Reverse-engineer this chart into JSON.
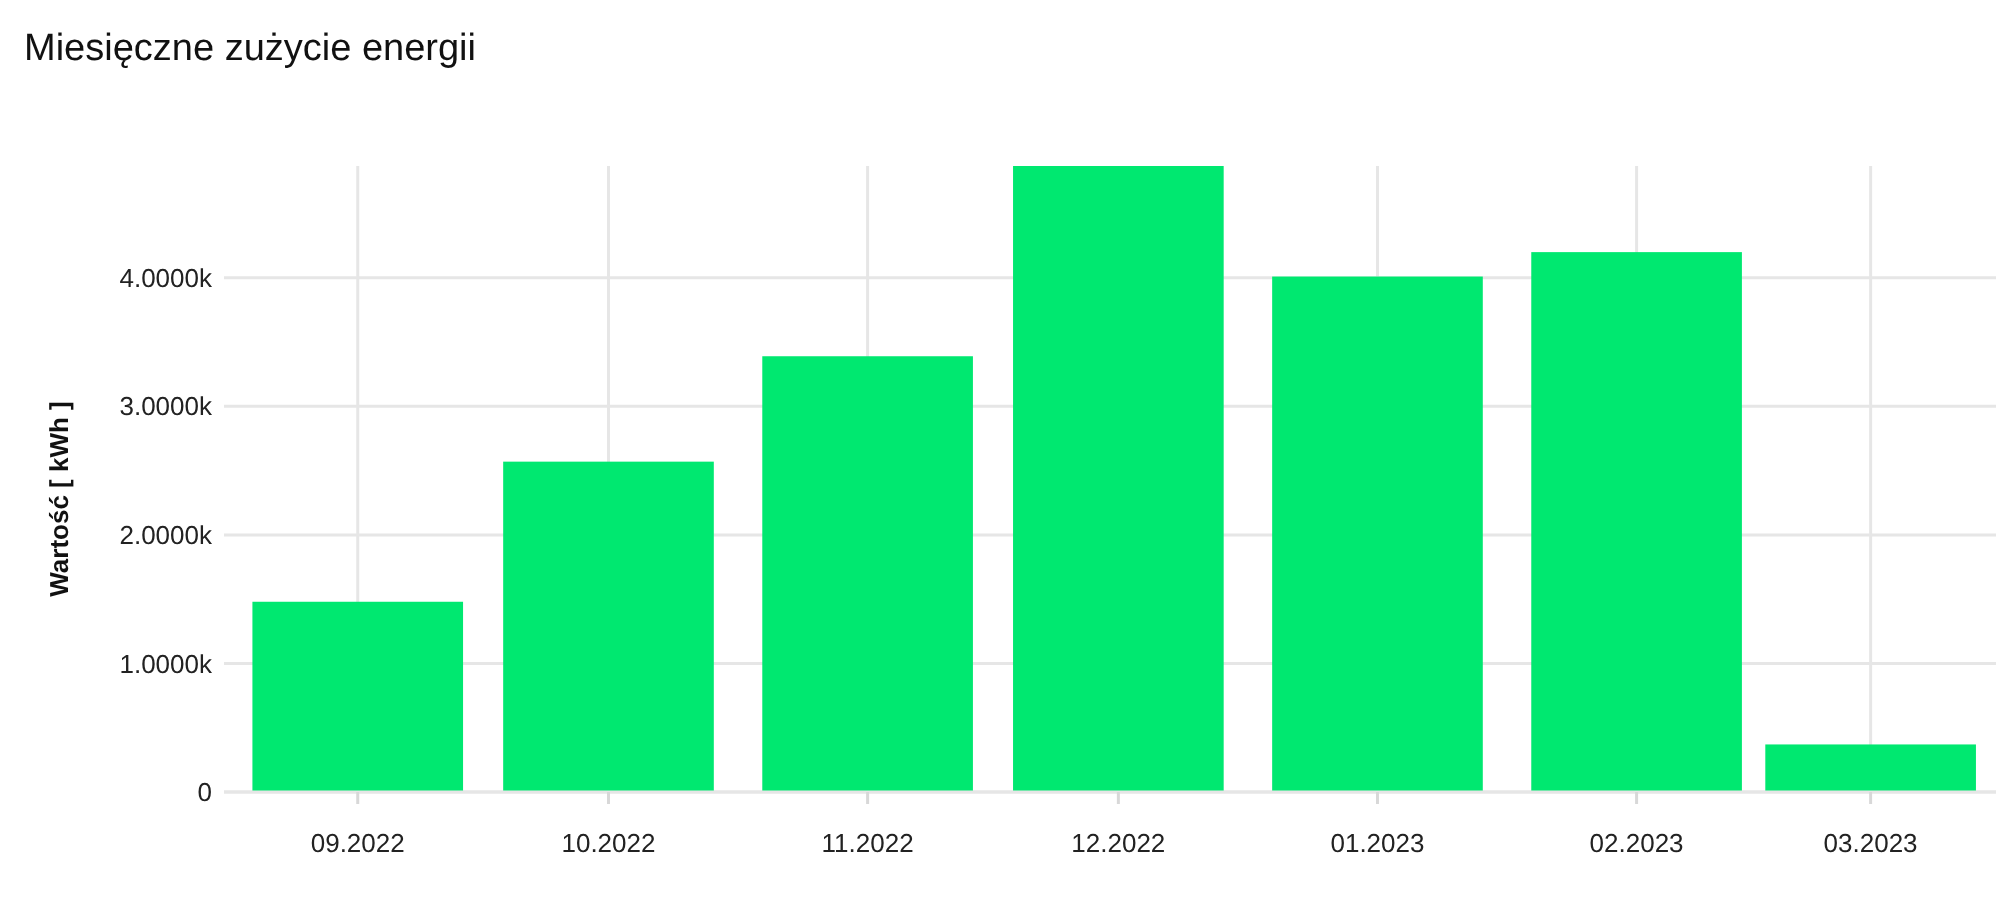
{
  "chart_data": {
    "type": "bar",
    "title": "Miesięczne zużycie energii",
    "ylabel": "Wartość [ kWh ]",
    "x": [
      "2022-09",
      "2022-10",
      "2022-11",
      "2022-12",
      "2023-01",
      "2023-02",
      "2023-03"
    ],
    "values": [
      1480,
      2570,
      3390,
      4870,
      4010,
      4200,
      370
    ],
    "color": "#00e870",
    "xlim": [
      "2022-08-16",
      "2023-03-16"
    ],
    "xticks": [
      {
        "value": "2022-09",
        "label": "09.2022"
      },
      {
        "value": "2022-10",
        "label": "10.2022"
      },
      {
        "value": "2022-11",
        "label": "11.2022"
      },
      {
        "value": "2022-12",
        "label": "12.2022"
      },
      {
        "value": "2023-01",
        "label": "01.2023"
      },
      {
        "value": "2023-02",
        "label": "02.2023"
      },
      {
        "value": "2023-03",
        "label": "03.2023"
      }
    ],
    "ylim": [
      0,
      4870
    ],
    "yticks": [
      0,
      {
        "value": 1000,
        "label": "1.0000k"
      },
      {
        "value": 2000,
        "label": "2.0000k"
      },
      {
        "value": 3000,
        "label": "3.0000k"
      },
      {
        "value": 4000,
        "label": "4.0000k"
      }
    ],
    "grid": true
  }
}
